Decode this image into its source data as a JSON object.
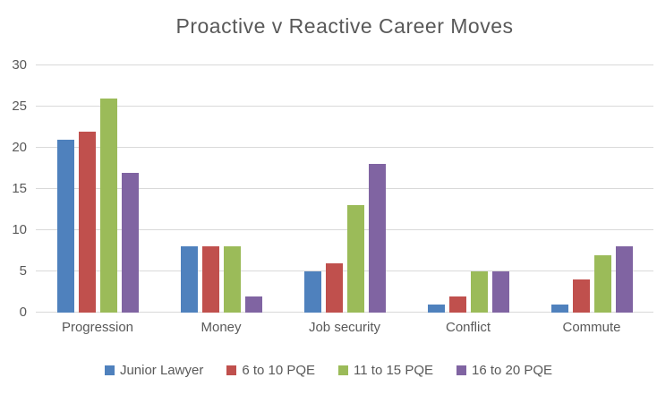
{
  "chart_data": {
    "type": "bar",
    "title": "Proactive v Reactive Career Moves",
    "categories": [
      "Progression",
      "Money",
      "Job security",
      "Conflict",
      "Commute"
    ],
    "series": [
      {
        "name": "Junior Lawyer",
        "color": "#4F81BD",
        "values": [
          21,
          8,
          5,
          1,
          1
        ]
      },
      {
        "name": "6 to 10 PQE",
        "color": "#C0504D",
        "values": [
          22,
          8,
          6,
          2,
          4
        ]
      },
      {
        "name": "11 to 15 PQE",
        "color": "#9BBB59",
        "values": [
          26,
          8,
          13,
          5,
          7
        ]
      },
      {
        "name": "16 to 20 PQE",
        "color": "#8064A2",
        "values": [
          17,
          2,
          18,
          5,
          8
        ]
      }
    ],
    "xlabel": "",
    "ylabel": "",
    "ylim": [
      0,
      30
    ],
    "yticks": [
      0,
      5,
      10,
      15,
      20,
      25,
      30
    ],
    "grid": true,
    "gridline_color": "#D9D9D9",
    "text_color": "#595959",
    "background_color": "#FFFFFF",
    "legend_position": "bottom"
  }
}
